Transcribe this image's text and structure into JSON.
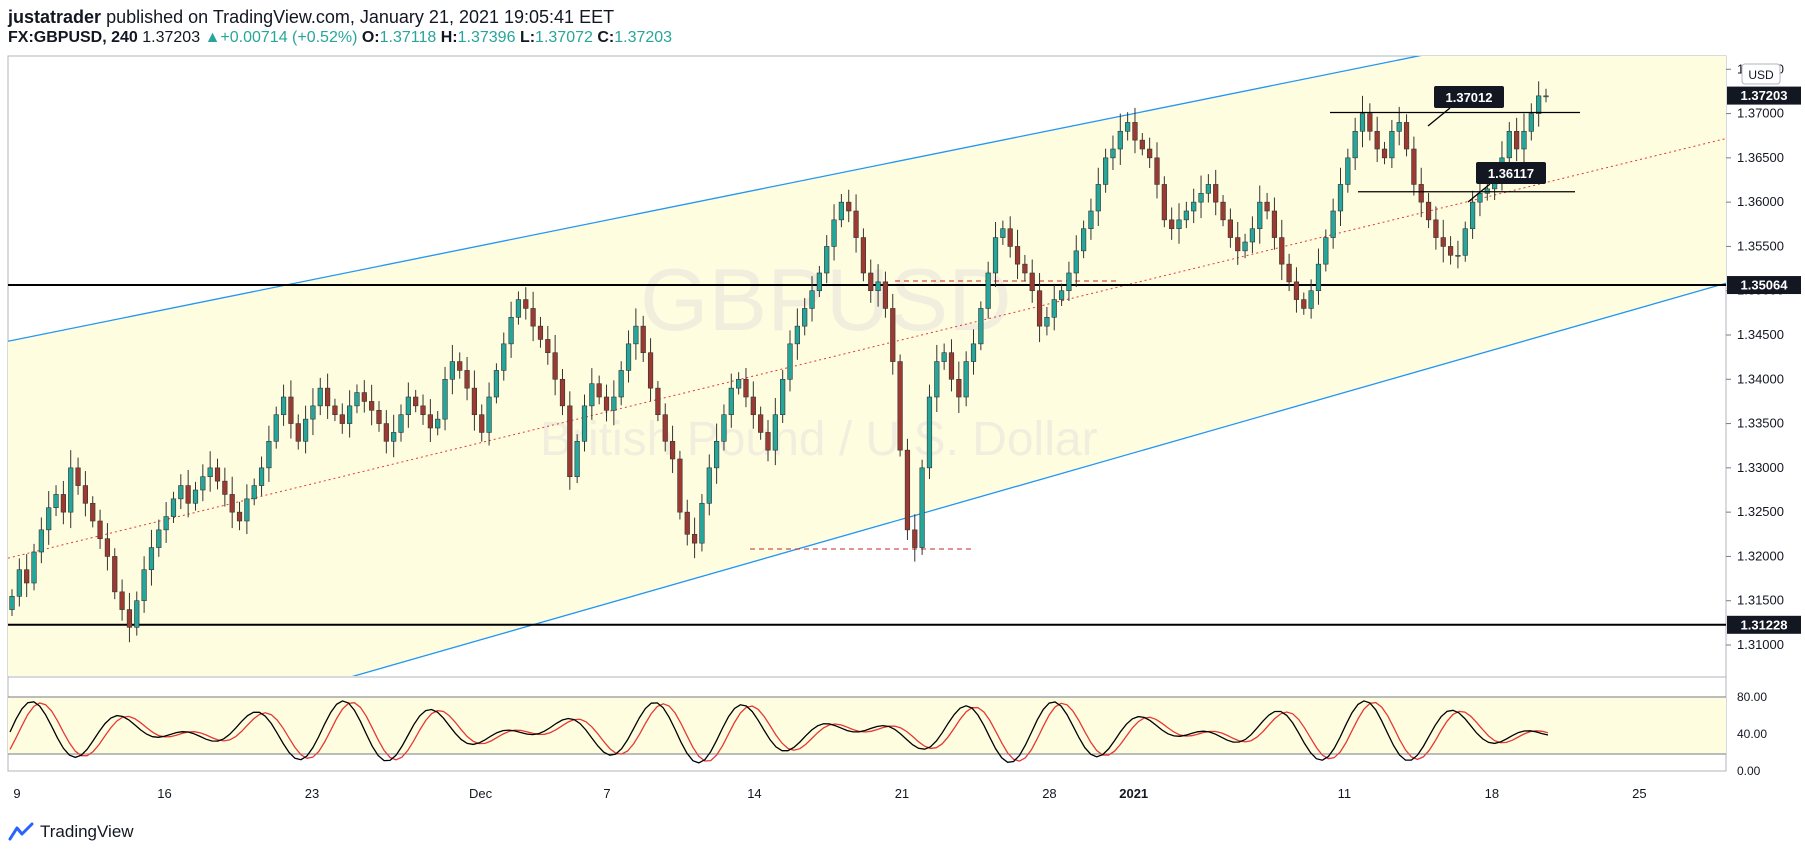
{
  "header": {
    "author": "justatrader",
    "published": "published on TradingView.com, January 21, 2021 19:05:41 EET",
    "symbol": "FX:GBPUSD, 240",
    "last": "1.37203",
    "change": "+0.00714 (+0.52%)",
    "o_label": "O:",
    "o": "1.37118",
    "h_label": "H:",
    "h": "1.37396",
    "l_label": "L:",
    "l": "1.37072",
    "c_label": "C:",
    "c": "1.37203"
  },
  "watermark": {
    "line1": "GBPUSD",
    "line2": "British Pound / U.S. Dollar"
  },
  "footer": {
    "brand": "TradingView"
  },
  "colors": {
    "bull": "#26a69a",
    "bear": "#9c3a32",
    "channel": "#2196f3",
    "band": "#fffde0",
    "midline": "#e53935",
    "stoch_k": "#000000",
    "stoch_d": "#e53935"
  },
  "chart_data": {
    "type": "candlestick",
    "currency": "USD",
    "y_ticks": [
      "1.37500",
      "1.37000",
      "1.36500",
      "1.36000",
      "1.35500",
      "1.35000",
      "1.34500",
      "1.34000",
      "1.33500",
      "1.33000",
      "1.32500",
      "1.32000",
      "1.31500",
      "1.31000"
    ],
    "x_ticks": [
      "9",
      "16",
      "23",
      "Dec",
      "7",
      "14",
      "21",
      "28",
      "2021",
      "11",
      "18",
      "25"
    ],
    "ylim": [
      1.3065,
      1.3765
    ],
    "horizontal_levels": [
      {
        "value": 1.35064,
        "label": "1.35064"
      },
      {
        "value": 1.31228,
        "label": "1.31228"
      }
    ],
    "last_price_label": "1.37203",
    "callouts": [
      {
        "label": "1.37012",
        "level": 1.37012
      },
      {
        "label": "1.36117",
        "level": 1.36117
      }
    ],
    "channel": {
      "upper": [
        {
          "date": "2020-11-09",
          "price": 1.3445
        },
        {
          "date": "2020-12-01",
          "price": 1.3502
        },
        {
          "date": "2021-01-01",
          "price": 1.37
        }
      ],
      "lower": [
        {
          "date": "2020-11-25",
          "price": 1.3065
        },
        {
          "date": "2021-01-22",
          "price": 1.346
        }
      ]
    },
    "candles_close": [
      1.3155,
      1.3185,
      1.317,
      1.3205,
      1.323,
      1.3255,
      1.327,
      1.325,
      1.33,
      1.328,
      1.326,
      1.324,
      1.322,
      1.32,
      1.316,
      1.314,
      1.312,
      1.315,
      1.3185,
      1.321,
      1.323,
      1.3245,
      1.3265,
      1.328,
      1.326,
      1.3275,
      1.329,
      1.33,
      1.3285,
      1.327,
      1.325,
      1.324,
      1.3265,
      1.328,
      1.33,
      1.333,
      1.336,
      1.338,
      1.335,
      1.333,
      1.3355,
      1.337,
      1.339,
      1.337,
      1.336,
      1.335,
      1.337,
      1.3385,
      1.3375,
      1.3365,
      1.335,
      1.333,
      1.334,
      1.336,
      1.338,
      1.337,
      1.336,
      1.3345,
      1.3355,
      1.34,
      1.342,
      1.341,
      1.339,
      1.336,
      1.334,
      1.338,
      1.341,
      1.344,
      1.347,
      1.349,
      1.348,
      1.346,
      1.3445,
      1.343,
      1.34,
      1.337,
      1.329,
      1.333,
      1.337,
      1.3395,
      1.338,
      1.3365,
      1.338,
      1.341,
      1.344,
      1.346,
      1.343,
      1.339,
      1.336,
      1.333,
      1.331,
      1.325,
      1.3225,
      1.3215,
      1.326,
      1.33,
      1.333,
      1.336,
      1.339,
      1.34,
      1.338,
      1.336,
      1.334,
      1.332,
      1.336,
      1.34,
      1.344,
      1.346,
      1.348,
      1.35,
      1.352,
      1.355,
      1.358,
      1.36,
      1.359,
      1.356,
      1.352,
      1.35,
      1.351,
      1.348,
      1.342,
      1.332,
      1.323,
      1.321,
      1.33,
      1.338,
      1.342,
      1.343,
      1.34,
      1.338,
      1.342,
      1.344,
      1.348,
      1.352,
      1.356,
      1.357,
      1.355,
      1.353,
      1.352,
      1.35,
      1.346,
      1.347,
      1.349,
      1.35,
      1.352,
      1.3545,
      1.357,
      1.359,
      1.362,
      1.365,
      1.366,
      1.368,
      1.369,
      1.367,
      1.366,
      1.365,
      1.362,
      1.358,
      1.357,
      1.358,
      1.359,
      1.36,
      1.361,
      1.362,
      1.36,
      1.358,
      1.356,
      1.3545,
      1.3555,
      1.357,
      1.36,
      1.359,
      1.356,
      1.353,
      1.351,
      1.349,
      1.348,
      1.35,
      1.353,
      1.356,
      1.359,
      1.362,
      1.365,
      1.368,
      1.37,
      1.368,
      1.366,
      1.365,
      1.368,
      1.369,
      1.366,
      1.362,
      1.36,
      1.358,
      1.356,
      1.355,
      1.354,
      1.354,
      1.357,
      1.36,
      1.361,
      1.3615,
      1.363,
      1.365,
      1.368,
      1.366,
      1.368,
      1.37,
      1.372,
      1.372
    ]
  }
}
